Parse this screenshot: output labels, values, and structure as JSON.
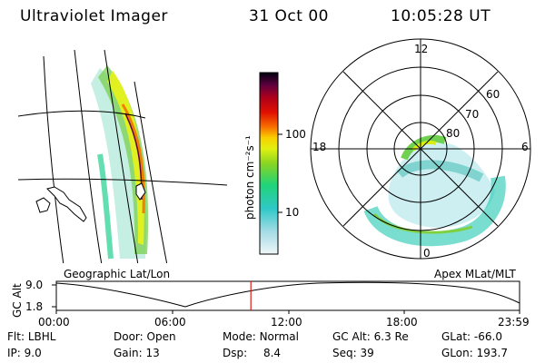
{
  "header": {
    "instrument": "Ultraviolet Imager",
    "date": "31 Oct 00",
    "time": "10:05:28 UT"
  },
  "geo_panel": {
    "label": "Geographic Lat/Lon"
  },
  "colorbar": {
    "unit_label": "photon cm⁻²s⁻¹",
    "ticks": [
      "100",
      "10"
    ],
    "colors": [
      "#e8f4f6",
      "#9ad6e0",
      "#38c8c8",
      "#20d47a",
      "#7ad020",
      "#d4ee10",
      "#f8e000",
      "#f88000",
      "#e81000",
      "#b80018",
      "#7a0038",
      "#300040",
      "#000000"
    ]
  },
  "polar_panel": {
    "label": "Apex MLat/MLT",
    "mlt_labels": [
      "12",
      "18",
      "6",
      "0"
    ],
    "mlat_labels": [
      "60",
      "70",
      "80"
    ]
  },
  "timeline": {
    "ylabel": "GC Alt",
    "yticks": [
      "9.0",
      "1.8"
    ],
    "xticks": [
      "00:00",
      "06:00",
      "12:00",
      "18:00",
      "23:59"
    ],
    "current_time_fraction": 0.42
  },
  "info": {
    "flt_label": "Flt:",
    "flt_value": "LBHL",
    "ip_label": "IP:",
    "ip_value": "9.0",
    "door_label": "Door:",
    "door_value": "Open",
    "gain_label": "Gain:",
    "gain_value": "13",
    "mode_label": "Mode:",
    "mode_value": "Normal",
    "dsp_label": "Dsp:",
    "dsp_value": "8.4",
    "gcalt_label": "GC Alt:",
    "gcalt_value": "6.3 Re",
    "seq_label": "Seq:",
    "seq_value": "39",
    "glat_label": "GLat:",
    "glat_value": "-66.0",
    "glon_label": "GLon:",
    "glon_value": "193.7"
  }
}
